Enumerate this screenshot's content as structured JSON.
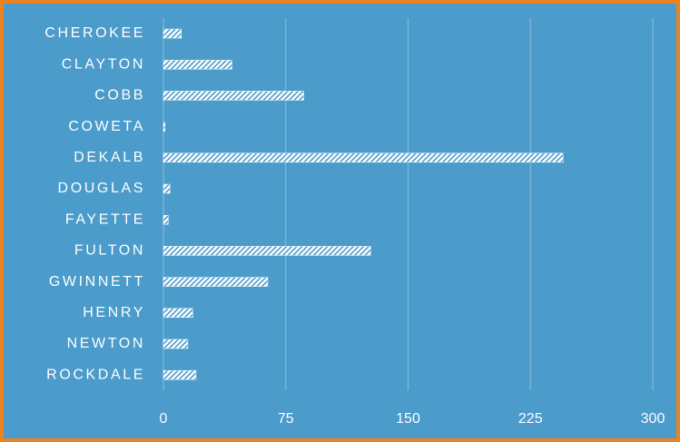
{
  "chart_data": {
    "type": "bar",
    "orientation": "horizontal",
    "categories": [
      "CHEROKEE",
      "CLAYTON",
      "COBB",
      "COWETA",
      "DEKALB",
      "DOUGLAS",
      "FAYETTE",
      "FULTON",
      "GWINNETT",
      "HENRY",
      "NEWTON",
      "ROCKDALE"
    ],
    "values": [
      11,
      42,
      86,
      1,
      245,
      4,
      3,
      127,
      64,
      18,
      15,
      20
    ],
    "color": "#ffffff",
    "xlim": [
      0,
      300
    ],
    "xticks": [
      0,
      75,
      150,
      225,
      300
    ],
    "grid": true
  }
}
